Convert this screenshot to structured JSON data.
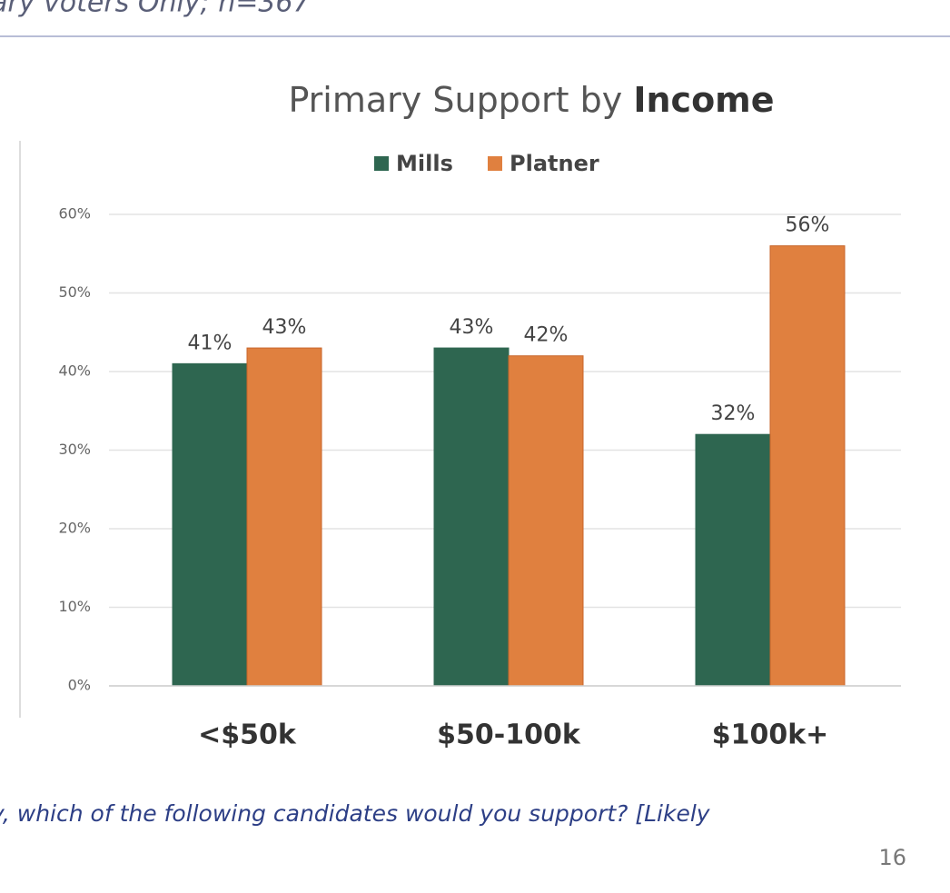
{
  "header": {
    "subtitle": "ary voters Only; n=367"
  },
  "chart_data": {
    "type": "bar",
    "title": "Primary Support by",
    "title_emphasis": "Income",
    "categories": [
      "<$50k",
      "$50-100k",
      "$100k+"
    ],
    "series": [
      {
        "name": "Mills",
        "color": "#2e6650",
        "values": [
          41,
          43,
          32
        ],
        "value_labels": [
          "41%",
          "43%",
          "32%"
        ]
      },
      {
        "name": "Platner",
        "color": "#e0803f",
        "values": [
          43,
          42,
          56
        ],
        "value_labels": [
          "43%",
          "42%",
          "56%"
        ]
      }
    ],
    "ylim": [
      0,
      60
    ],
    "yticks": [
      {
        "value": 0,
        "label": "0%"
      },
      {
        "value": 10,
        "label": "10%"
      },
      {
        "value": 20,
        "label": "20%"
      },
      {
        "value": 30,
        "label": "30%"
      },
      {
        "value": 40,
        "label": "40%"
      },
      {
        "value": 50,
        "label": "50%"
      },
      {
        "value": 60,
        "label": "60%"
      }
    ],
    "grid": true,
    "legend": "top"
  },
  "footer": {
    "question": "y, which of the following candidates would you support? [Likely",
    "page_number": "16"
  }
}
